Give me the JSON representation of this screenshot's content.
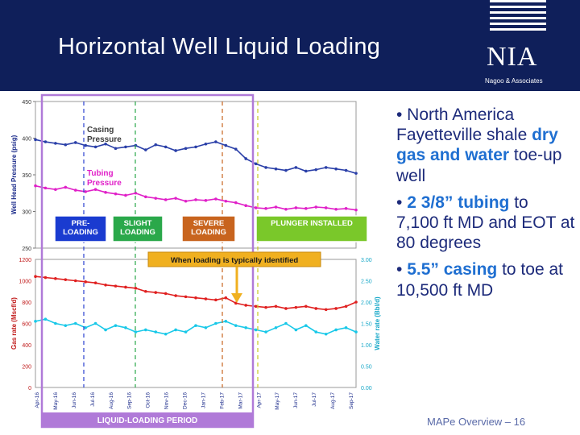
{
  "slide": {
    "title": "Horizontal Well Liquid Loading",
    "logo": "NIA",
    "logo_sub": "Nagoo & Associates",
    "footer": "MAPe Overview – 16"
  },
  "bullets": [
    {
      "parts": [
        {
          "text": "• North America Fayetteville shale ",
          "hl": false
        },
        {
          "text": "dry gas and water",
          "hl": true
        },
        {
          "text": " toe-up well",
          "hl": false
        }
      ]
    },
    {
      "parts": [
        {
          "text": "• ",
          "hl": false
        },
        {
          "text": "2 3/8” tubing",
          "hl": true
        },
        {
          "text": " to 7,100 ft MD and EOT at 80 degrees",
          "hl": false
        }
      ]
    },
    {
      "parts": [
        {
          "text": "• ",
          "hl": false
        },
        {
          "text": "5.5” casing",
          "hl": true
        },
        {
          "text": " to toe at 10,500 ft MD",
          "hl": false
        }
      ]
    }
  ],
  "chart_data": [
    {
      "type": "line",
      "title": "",
      "ylabel": "Well Head Pressure (psig)",
      "ylim": [
        250,
        450
      ],
      "yticks": [
        "450",
        "400",
        "350",
        "300",
        "250"
      ],
      "x": [
        0,
        12,
        24,
        36,
        48,
        60,
        72,
        84,
        96,
        108,
        120,
        132,
        144,
        156,
        168,
        180,
        192,
        204,
        216,
        228,
        240,
        252,
        264,
        276,
        288,
        300,
        312,
        324,
        336,
        348,
        360,
        372,
        384
      ],
      "series": [
        {
          "name": "Casing Pressure",
          "color": "#2a3fa8",
          "values": [
            398,
            395,
            393,
            391,
            394,
            390,
            388,
            392,
            386,
            388,
            390,
            384,
            391,
            388,
            383,
            386,
            388,
            392,
            395,
            390,
            385,
            372,
            365,
            360,
            358,
            356,
            360,
            355,
            357,
            360,
            358,
            356,
            352
          ]
        },
        {
          "name": "Tubing Pressure",
          "color": "#e020c8",
          "values": [
            335,
            332,
            330,
            333,
            329,
            327,
            330,
            326,
            324,
            322,
            325,
            320,
            318,
            316,
            318,
            314,
            316,
            315,
            317,
            314,
            312,
            308,
            305,
            304,
            306,
            303,
            305,
            304,
            306,
            305,
            303,
            304,
            302
          ]
        }
      ],
      "annotations": [
        "Casing Pressure",
        "Tubing Pressure"
      ]
    },
    {
      "type": "line",
      "ylabel": "Gas rate (Mscf/d)",
      "y2label": "Water rate (Bbl/d)",
      "ylim": [
        0,
        1200
      ],
      "y2lim": [
        0,
        3
      ],
      "yticks": [
        "1200",
        "1000",
        "800",
        "600",
        "400",
        "200",
        "0"
      ],
      "y2ticks": [
        "3.00",
        "2.50",
        "2.00",
        "1.50",
        "1.00",
        "0.50",
        "0.00"
      ],
      "xticks": [
        "Apr-16",
        "May-16",
        "Jun-16",
        "Jul-16",
        "Aug-16",
        "Sep-16",
        "Oct-16",
        "Nov-16",
        "Dec-16",
        "Jan-17",
        "Feb-17",
        "Mar-17",
        "Apr-17",
        "May-17",
        "Jun-17",
        "Jul-17",
        "Aug-17",
        "Sep-17"
      ],
      "x": [
        0,
        12,
        24,
        36,
        48,
        60,
        72,
        84,
        96,
        108,
        120,
        132,
        144,
        156,
        168,
        180,
        192,
        204,
        216,
        228,
        240,
        252,
        264,
        276,
        288,
        300,
        312,
        324,
        336,
        348,
        360,
        372,
        384
      ],
      "series": [
        {
          "name": "Gas rate",
          "color": "#e02020",
          "axis": "left",
          "values": [
            1040,
            1030,
            1020,
            1010,
            1000,
            990,
            980,
            960,
            950,
            940,
            930,
            900,
            890,
            880,
            860,
            850,
            840,
            830,
            820,
            840,
            790,
            770,
            760,
            750,
            760,
            740,
            750,
            760,
            740,
            730,
            740,
            760,
            800
          ]
        },
        {
          "name": "Water rate",
          "color": "#18c8e8",
          "axis": "right",
          "values": [
            1.55,
            1.6,
            1.5,
            1.45,
            1.5,
            1.4,
            1.5,
            1.35,
            1.45,
            1.4,
            1.3,
            1.35,
            1.3,
            1.25,
            1.35,
            1.3,
            1.45,
            1.4,
            1.5,
            1.55,
            1.45,
            1.4,
            1.35,
            1.3,
            1.4,
            1.5,
            1.35,
            1.45,
            1.3,
            1.25,
            1.35,
            1.4,
            1.3
          ]
        }
      ]
    }
  ],
  "labels": {
    "pre_loading": "PRE-\nLOADING",
    "slight_loading": "SLIGHT\nLOADING",
    "severe_loading": "SEVERE\nLOADING",
    "plunger": "PLUNGER INSTALLED",
    "identified": "When loading is typically identified",
    "period": "LIQUID-LOADING PERIOD",
    "casing": "Casing\nPressure",
    "tubing": "Tubing\nPressure"
  },
  "colors": {
    "header": "#0f1f5a",
    "pre": "#1a3bd0",
    "slight": "#2aa84a",
    "severe": "#c8641e",
    "plunger": "#7ac82a",
    "period": "#b07ad8"
  }
}
